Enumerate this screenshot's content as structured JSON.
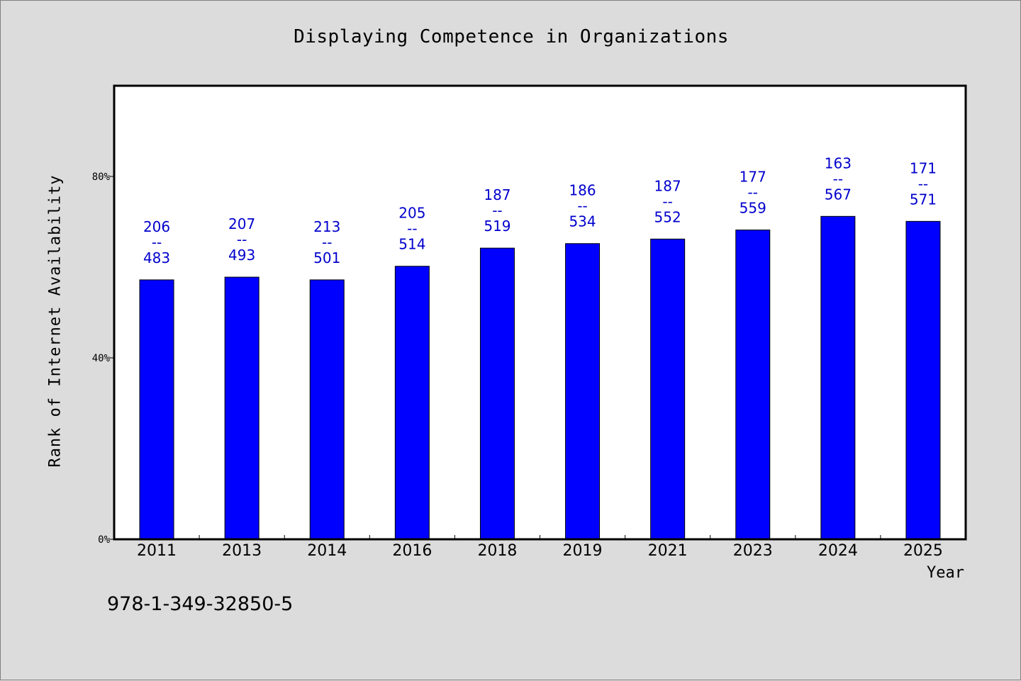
{
  "chart_data": {
    "type": "bar",
    "title": "Displaying Competence in Organizations",
    "xlabel": "Year",
    "ylabel": "Rank of Internet Availability",
    "categories": [
      "2011",
      "2013",
      "2014",
      "2016",
      "2018",
      "2019",
      "2021",
      "2023",
      "2024",
      "2025"
    ],
    "series": [
      {
        "values": [
          57.2,
          57.8,
          57.2,
          60.2,
          64.2,
          65.2,
          66.2,
          68.2,
          71.2,
          70.1
        ],
        "labels": [
          "206\n--\n483",
          "207\n--\n493",
          "213\n--\n501",
          "205\n--\n514",
          "187\n--\n519",
          "186\n--\n534",
          "187\n--\n552",
          "177\n--\n559",
          "163\n--\n567",
          "171\n--\n571"
        ],
        "color": "#0000ff"
      }
    ],
    "ylim": [
      0,
      100
    ],
    "yticks": [
      0,
      40,
      80
    ],
    "ytick_labels": [
      "0%",
      "40%",
      "80%"
    ],
    "grid": false,
    "legend": "none"
  },
  "footnote": "978-1-349-32850-5",
  "colors": {
    "background": "#dcdcdc",
    "plot_area": "#ffffff",
    "bar": "#0000ff",
    "data_label": "#0000cd"
  }
}
